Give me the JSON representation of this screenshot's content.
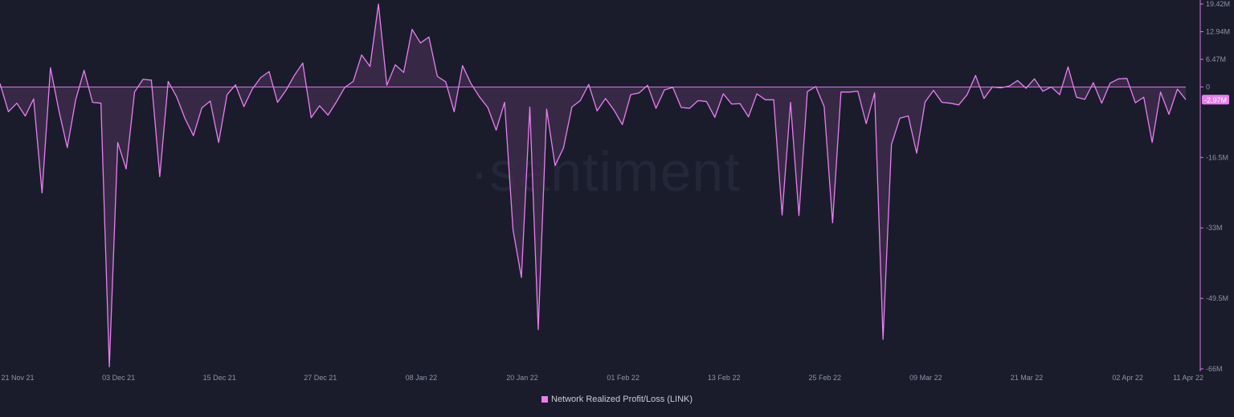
{
  "watermark": "·santiment",
  "legend": {
    "label": "Network Realized Profit/Loss (LINK)"
  },
  "colors": {
    "background": "#1a1c2c",
    "line": "#e87ff0",
    "fill": "#3d2c4a",
    "zero_line": "#d27ae0",
    "axis_text": "#8f93a6",
    "badge": "#e67fee"
  },
  "chart_data": {
    "type": "area",
    "title": "",
    "xlabel": "",
    "ylabel": "",
    "x_ticks": [
      "21 Nov 21",
      "03 Dec 21",
      "15 Dec 21",
      "27 Dec 21",
      "08 Jan 22",
      "20 Jan 22",
      "01 Feb 22",
      "13 Feb 22",
      "25 Feb 22",
      "09 Mar 22",
      "21 Mar 22",
      "02 Apr 22",
      "11 Apr 22"
    ],
    "y_ticks": [
      "19.42M",
      "12.94M",
      "6.47M",
      "0",
      "-16.5M",
      "-33M",
      "-49.5M",
      "-66M"
    ],
    "y_tick_values": [
      19.42,
      12.94,
      6.47,
      0,
      -16.5,
      -33,
      -49.5,
      -66
    ],
    "ylim": [
      -66,
      19.42
    ],
    "unit": "M",
    "last_value_label": "-2.97M",
    "grid": false,
    "legend_position": "bottom-center",
    "series": [
      {
        "name": "Network Realized Profit/Loss (LINK)",
        "values": [
          0.8,
          -5.8,
          -3.8,
          -6.8,
          -2.8,
          -24.8,
          4.5,
          -5.5,
          -14.2,
          -3,
          3.9,
          -3.6,
          -3.8,
          -65.5,
          -13,
          -19.2,
          -1.2,
          1.8,
          1.6,
          -21,
          1.3,
          -2.3,
          -7.4,
          -11.4,
          -4.9,
          -3.3,
          -13,
          -1.8,
          0.5,
          -4.6,
          -0.5,
          2.2,
          3.6,
          -3.6,
          -0.8,
          2.7,
          5.6,
          -7.2,
          -4.4,
          -6.6,
          -3.5,
          -0.1,
          1.3,
          7.5,
          4.8,
          19.4,
          0.4,
          5.2,
          3.4,
          13.5,
          10.3,
          11.7,
          2.5,
          1.2,
          -5.8,
          5,
          0.8,
          -2.3,
          -4.8,
          -10.1,
          -3.6,
          -33.4,
          -44.6,
          -4.7,
          -56.8,
          -5.2,
          -18.4,
          -14.3,
          -4.7,
          -3.2,
          0.6,
          -5.6,
          -2.7,
          -5.4,
          -8.8,
          -1.8,
          -1.4,
          0.4,
          -5,
          -0.7,
          -0.1,
          -4.8,
          -5,
          -3.2,
          -3.4,
          -7.1,
          -1.6,
          -4,
          -3.9,
          -7,
          -1.6,
          -3,
          -3,
          -30,
          -3.6,
          -30.1,
          -1.1,
          0.1,
          -4.6,
          -31.8,
          -1.2,
          -1.2,
          -1,
          -8.6,
          -1.4,
          -59.1,
          -13.5,
          -7.3,
          -6.8,
          -15.5,
          -3.5,
          -0.8,
          -3.6,
          -3.8,
          -4.2,
          -1.8,
          2.7,
          -2.7,
          0,
          -0.2,
          0.2,
          1.5,
          -0.3,
          1.9,
          -1,
          0,
          -1.8,
          4.7,
          -2.4,
          -2.9,
          1,
          -3.8,
          0.9,
          1.9,
          2,
          -3.7,
          -2.4,
          -13,
          -1.2,
          -6.4,
          -0.5,
          -2.97
        ]
      }
    ]
  }
}
